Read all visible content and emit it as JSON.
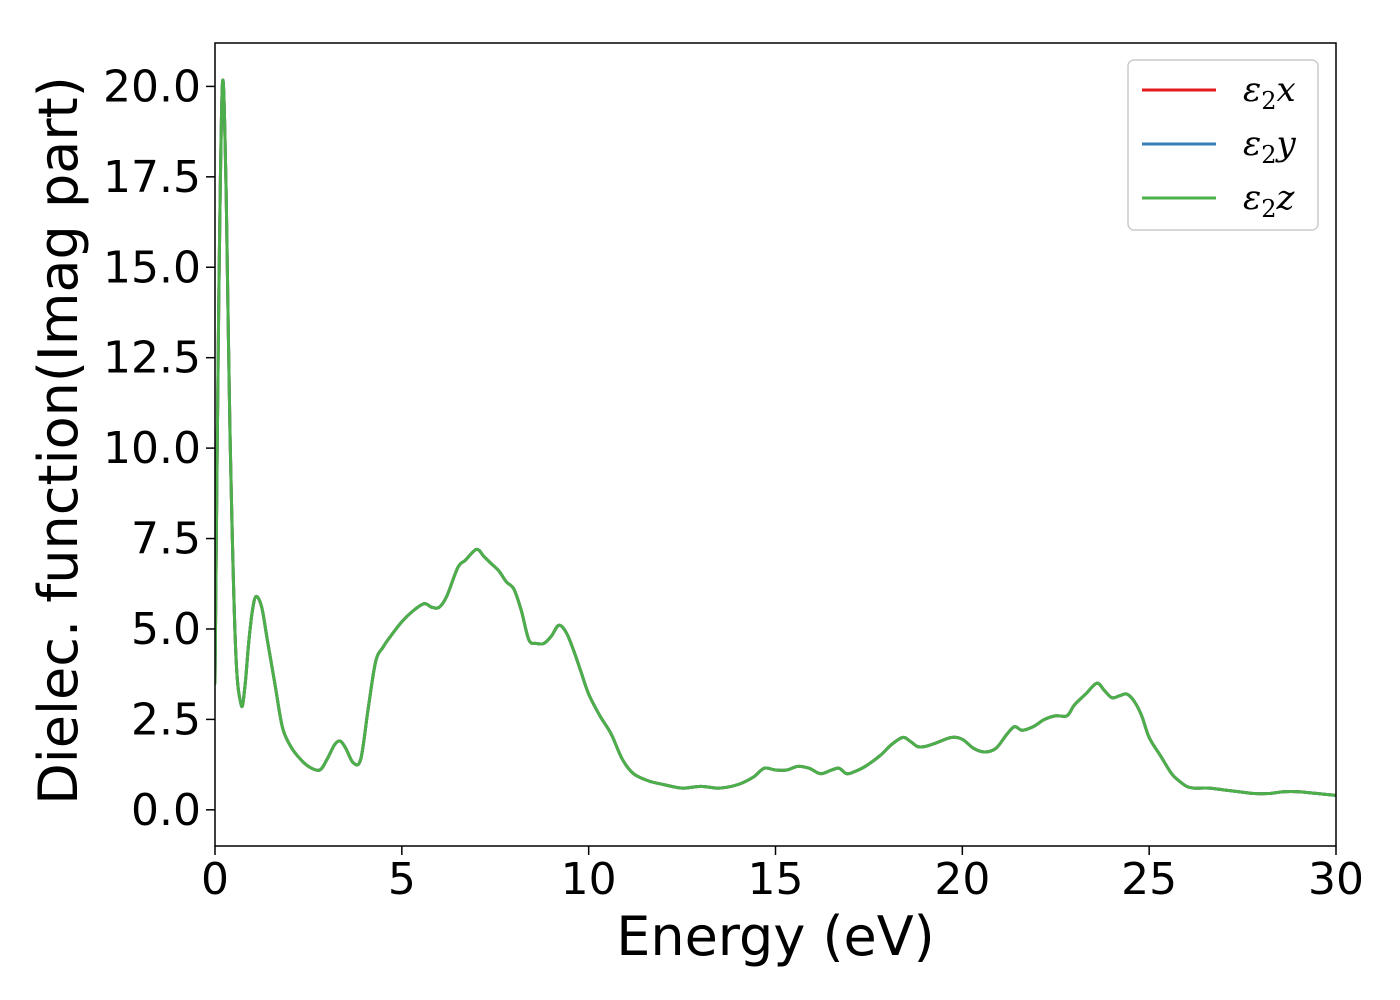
{
  "chart_data": {
    "type": "line",
    "title": "",
    "xlabel": "Energy (eV)",
    "ylabel": "Dielec. function(Imag part)",
    "xlim": [
      0,
      30
    ],
    "ylim": [
      -1.0,
      21.2
    ],
    "xticks": [
      0,
      5,
      10,
      15,
      20,
      25,
      30
    ],
    "xtick_labels": [
      "0",
      "5",
      "10",
      "15",
      "20",
      "25",
      "30"
    ],
    "yticks": [
      0.0,
      2.5,
      5.0,
      7.5,
      10.0,
      12.5,
      15.0,
      17.5,
      20.0
    ],
    "ytick_labels": [
      "0.0",
      "2.5",
      "5.0",
      "7.5",
      "10.0",
      "12.5",
      "15.0",
      "17.5",
      "20.0"
    ],
    "grid": false,
    "legend_position": "top-right",
    "x": [
      0,
      0.1,
      0.2,
      0.3,
      0.4,
      0.55,
      0.7,
      0.8,
      0.9,
      1.0,
      1.1,
      1.25,
      1.4,
      1.6,
      1.8,
      2.0,
      2.2,
      2.5,
      2.8,
      3.0,
      3.2,
      3.35,
      3.5,
      3.7,
      3.9,
      4.1,
      4.3,
      4.5,
      4.7,
      5.0,
      5.3,
      5.6,
      5.8,
      6.0,
      6.2,
      6.5,
      6.7,
      7.0,
      7.2,
      7.4,
      7.6,
      7.8,
      8.0,
      8.2,
      8.4,
      8.6,
      8.8,
      9.0,
      9.2,
      9.4,
      9.6,
      9.8,
      10.0,
      10.3,
      10.6,
      10.9,
      11.2,
      11.6,
      12.0,
      12.5,
      13.0,
      13.5,
      14.0,
      14.4,
      14.7,
      15.0,
      15.3,
      15.6,
      15.9,
      16.2,
      16.5,
      16.7,
      16.9,
      17.1,
      17.4,
      17.8,
      18.1,
      18.4,
      18.6,
      18.8,
      19.0,
      19.3,
      19.7,
      20.0,
      20.3,
      20.6,
      20.9,
      21.2,
      21.4,
      21.6,
      21.9,
      22.2,
      22.5,
      22.8,
      23.0,
      23.3,
      23.6,
      23.8,
      24.0,
      24.2,
      24.4,
      24.6,
      24.8,
      25.0,
      25.3,
      25.6,
      25.8,
      26.0,
      26.2,
      26.6,
      27.0,
      27.4,
      27.8,
      28.2,
      28.6,
      29.0,
      29.5,
      30.0
    ],
    "series": [
      {
        "name": "ε2x",
        "color": "#e41a1c",
        "y": [
          3.5,
          14.0,
          20.1,
          17.0,
          10.5,
          4.5,
          2.9,
          3.4,
          4.6,
          5.5,
          5.9,
          5.6,
          4.7,
          3.5,
          2.3,
          1.8,
          1.5,
          1.2,
          1.1,
          1.4,
          1.8,
          1.9,
          1.7,
          1.3,
          1.4,
          2.8,
          4.1,
          4.5,
          4.8,
          5.2,
          5.5,
          5.7,
          5.6,
          5.6,
          5.9,
          6.7,
          6.9,
          7.2,
          7.0,
          6.8,
          6.6,
          6.3,
          6.1,
          5.5,
          4.7,
          4.6,
          4.6,
          4.8,
          5.1,
          4.9,
          4.4,
          3.8,
          3.2,
          2.6,
          2.1,
          1.4,
          1.0,
          0.8,
          0.7,
          0.6,
          0.65,
          0.6,
          0.7,
          0.9,
          1.15,
          1.1,
          1.1,
          1.2,
          1.15,
          1.0,
          1.1,
          1.15,
          1.0,
          1.05,
          1.2,
          1.5,
          1.8,
          2.0,
          1.9,
          1.75,
          1.75,
          1.85,
          2.0,
          1.95,
          1.7,
          1.6,
          1.7,
          2.1,
          2.3,
          2.2,
          2.3,
          2.5,
          2.6,
          2.6,
          2.9,
          3.2,
          3.5,
          3.3,
          3.1,
          3.15,
          3.2,
          3.0,
          2.6,
          2.0,
          1.5,
          1.0,
          0.8,
          0.65,
          0.6,
          0.6,
          0.55,
          0.5,
          0.45,
          0.45,
          0.5,
          0.5,
          0.45,
          0.4
        ]
      },
      {
        "name": "ε2y",
        "color": "#377eb8",
        "y": [
          3.5,
          14.0,
          20.1,
          17.0,
          10.5,
          4.5,
          2.9,
          3.4,
          4.6,
          5.5,
          5.9,
          5.6,
          4.7,
          3.5,
          2.3,
          1.8,
          1.5,
          1.2,
          1.1,
          1.4,
          1.8,
          1.9,
          1.7,
          1.3,
          1.4,
          2.8,
          4.1,
          4.5,
          4.8,
          5.2,
          5.5,
          5.7,
          5.6,
          5.6,
          5.9,
          6.7,
          6.9,
          7.2,
          7.0,
          6.8,
          6.6,
          6.3,
          6.1,
          5.5,
          4.7,
          4.6,
          4.6,
          4.8,
          5.1,
          4.9,
          4.4,
          3.8,
          3.2,
          2.6,
          2.1,
          1.4,
          1.0,
          0.8,
          0.7,
          0.6,
          0.65,
          0.6,
          0.7,
          0.9,
          1.15,
          1.1,
          1.1,
          1.2,
          1.15,
          1.0,
          1.1,
          1.15,
          1.0,
          1.05,
          1.2,
          1.5,
          1.8,
          2.0,
          1.9,
          1.75,
          1.75,
          1.85,
          2.0,
          1.95,
          1.7,
          1.6,
          1.7,
          2.1,
          2.3,
          2.2,
          2.3,
          2.5,
          2.6,
          2.6,
          2.9,
          3.2,
          3.5,
          3.3,
          3.1,
          3.15,
          3.2,
          3.0,
          2.6,
          2.0,
          1.5,
          1.0,
          0.8,
          0.65,
          0.6,
          0.6,
          0.55,
          0.5,
          0.45,
          0.45,
          0.5,
          0.5,
          0.45,
          0.4
        ]
      },
      {
        "name": "ε2z",
        "color": "#4daf4a",
        "y": [
          3.5,
          14.0,
          20.1,
          17.0,
          10.5,
          4.5,
          2.9,
          3.4,
          4.6,
          5.5,
          5.9,
          5.6,
          4.7,
          3.5,
          2.3,
          1.8,
          1.5,
          1.2,
          1.1,
          1.4,
          1.8,
          1.9,
          1.7,
          1.3,
          1.4,
          2.8,
          4.1,
          4.5,
          4.8,
          5.2,
          5.5,
          5.7,
          5.6,
          5.6,
          5.9,
          6.7,
          6.9,
          7.2,
          7.0,
          6.8,
          6.6,
          6.3,
          6.1,
          5.5,
          4.7,
          4.6,
          4.6,
          4.8,
          5.1,
          4.9,
          4.4,
          3.8,
          3.2,
          2.6,
          2.1,
          1.4,
          1.0,
          0.8,
          0.7,
          0.6,
          0.65,
          0.6,
          0.7,
          0.9,
          1.15,
          1.1,
          1.1,
          1.2,
          1.15,
          1.0,
          1.1,
          1.15,
          1.0,
          1.05,
          1.2,
          1.5,
          1.8,
          2.0,
          1.9,
          1.75,
          1.75,
          1.85,
          2.0,
          1.95,
          1.7,
          1.6,
          1.7,
          2.1,
          2.3,
          2.2,
          2.3,
          2.5,
          2.6,
          2.6,
          2.9,
          3.2,
          3.5,
          3.3,
          3.1,
          3.15,
          3.2,
          3.0,
          2.6,
          2.0,
          1.5,
          1.0,
          0.8,
          0.65,
          0.6,
          0.6,
          0.55,
          0.5,
          0.45,
          0.45,
          0.5,
          0.5,
          0.45,
          0.4
        ]
      }
    ],
    "legend": [
      {
        "symbol": "ε",
        "sub": "2",
        "axis": "x",
        "color": "#e41a1c"
      },
      {
        "symbol": "ε",
        "sub": "2",
        "axis": "y",
        "color": "#377eb8"
      },
      {
        "symbol": "ε",
        "sub": "2",
        "axis": "z",
        "color": "#4daf4a"
      }
    ]
  }
}
